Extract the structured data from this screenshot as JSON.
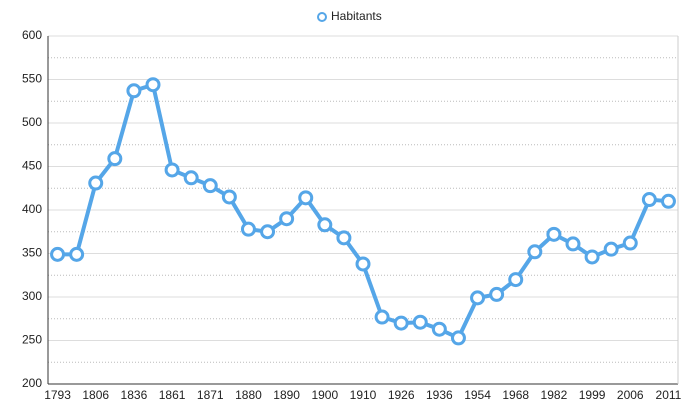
{
  "chart_data": {
    "type": "line",
    "categories": [
      "1793",
      null,
      "1806",
      null,
      "1836",
      null,
      "1861",
      null,
      "1871",
      null,
      "1880",
      null,
      "1890",
      null,
      "1900",
      null,
      "1910",
      null,
      "1926",
      null,
      "1936",
      null,
      "1954",
      null,
      "1968",
      null,
      "1982",
      null,
      "1999",
      null,
      "2006",
      null,
      "2011"
    ],
    "series": [
      {
        "name": "Habitants",
        "color": "#55a6e8",
        "values": [
          349,
          349,
          431,
          459,
          537,
          544,
          446,
          437,
          428,
          415,
          378,
          375,
          390,
          414,
          383,
          368,
          338,
          277,
          270,
          271,
          263,
          253,
          299,
          303,
          320,
          352,
          372,
          361,
          346,
          355,
          362,
          412,
          410
        ]
      }
    ],
    "ylim": [
      200,
      600
    ],
    "yticks": [
      200,
      250,
      300,
      350,
      400,
      450,
      500,
      550,
      600
    ],
    "minor_yticks": [
      225,
      275,
      325,
      375,
      425,
      475,
      525,
      575
    ],
    "grid": true,
    "legend": "top"
  }
}
